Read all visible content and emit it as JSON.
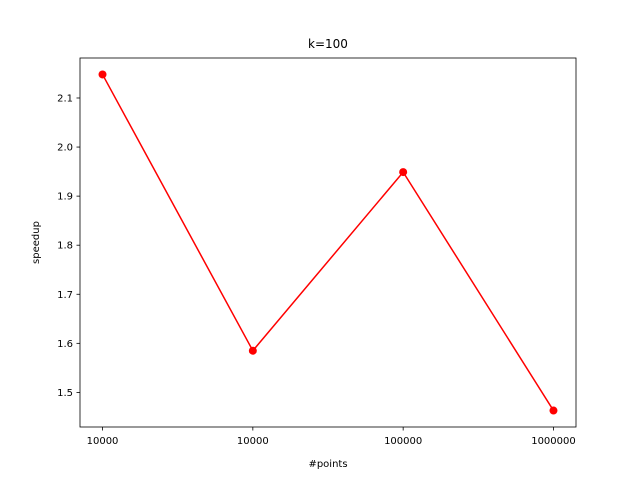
{
  "chart_data": {
    "type": "line",
    "title": "k=100",
    "xlabel": "#points",
    "ylabel": "speedup",
    "categories": [
      "10000",
      "10000",
      "100000",
      "1000000"
    ],
    "series": [
      {
        "name": "",
        "color": "#ff0000",
        "marker": "circle",
        "values": [
          2.148,
          1.585,
          1.949,
          1.463
        ]
      }
    ],
    "ylim": [
      1.4295,
      2.1815
    ],
    "yticks": [
      1.5,
      1.6,
      1.7,
      1.8,
      1.9,
      2.0,
      2.1
    ],
    "grid": false,
    "legend": "none"
  }
}
